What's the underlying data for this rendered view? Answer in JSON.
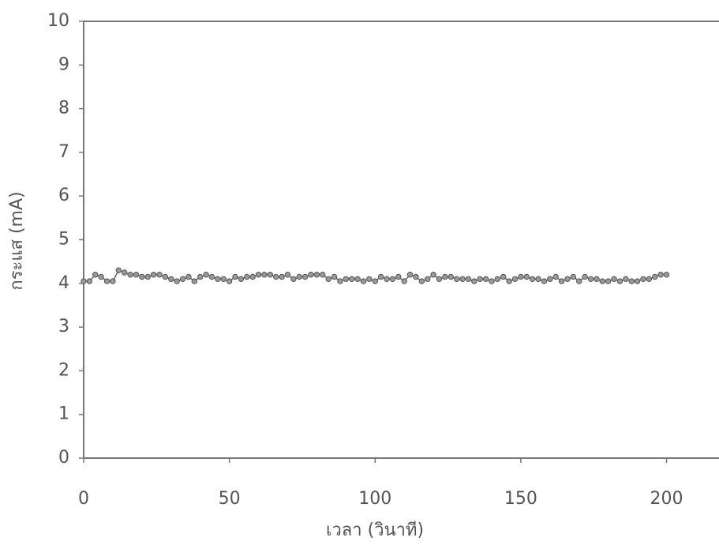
{
  "chart_data": {
    "type": "line",
    "xlabel": "เวลา (วินาที)",
    "ylabel": "กระแส (mA)",
    "x": [
      0,
      2,
      4,
      6,
      8,
      10,
      12,
      14,
      16,
      18,
      20,
      22,
      24,
      26,
      28,
      30,
      32,
      34,
      36,
      38,
      40,
      42,
      44,
      46,
      48,
      50,
      52,
      54,
      56,
      58,
      60,
      62,
      64,
      66,
      68,
      70,
      72,
      74,
      76,
      78,
      80,
      82,
      84,
      86,
      88,
      90,
      92,
      94,
      96,
      98,
      100,
      102,
      104,
      106,
      108,
      110,
      112,
      114,
      116,
      118,
      120,
      122,
      124,
      126,
      128,
      130,
      132,
      134,
      136,
      138,
      140,
      142,
      144,
      146,
      148,
      150,
      152,
      154,
      156,
      158,
      160,
      162,
      164,
      166,
      168,
      170,
      172,
      174,
      176,
      178,
      180,
      182,
      184,
      186,
      188,
      190,
      192,
      194,
      196,
      198,
      200
    ],
    "series": [
      {
        "color": "#9a9a9a",
        "values": [
          4.05,
          4.05,
          4.2,
          4.15,
          4.05,
          4.05,
          4.3,
          4.25,
          4.2,
          4.2,
          4.15,
          4.15,
          4.2,
          4.2,
          4.15,
          4.1,
          4.05,
          4.1,
          4.15,
          4.05,
          4.15,
          4.2,
          4.15,
          4.1,
          4.1,
          4.05,
          4.15,
          4.1,
          4.15,
          4.15,
          4.2,
          4.2,
          4.2,
          4.15,
          4.15,
          4.2,
          4.1,
          4.15,
          4.15,
          4.2,
          4.2,
          4.2,
          4.1,
          4.15,
          4.05,
          4.1,
          4.1,
          4.1,
          4.05,
          4.1,
          4.05,
          4.15,
          4.1,
          4.1,
          4.15,
          4.05,
          4.2,
          4.15,
          4.05,
          4.1,
          4.2,
          4.1,
          4.15,
          4.15,
          4.1,
          4.1,
          4.1,
          4.05,
          4.1,
          4.1,
          4.05,
          4.1,
          4.15,
          4.05,
          4.1,
          4.15,
          4.15,
          4.1,
          4.1,
          4.05,
          4.1,
          4.15,
          4.05,
          4.1,
          4.15,
          4.05,
          4.15,
          4.1,
          4.1,
          4.05,
          4.05,
          4.1,
          4.05,
          4.1,
          4.05,
          4.05,
          4.1,
          4.1,
          4.15,
          4.2,
          4.2
        ]
      }
    ],
    "xlim": [
      0,
      218
    ],
    "ylim": [
      0,
      10
    ],
    "xticks": [
      0,
      50,
      100,
      150,
      200
    ],
    "yticks": [
      0,
      1,
      2,
      3,
      4,
      5,
      6,
      7,
      8,
      9,
      10
    ]
  }
}
